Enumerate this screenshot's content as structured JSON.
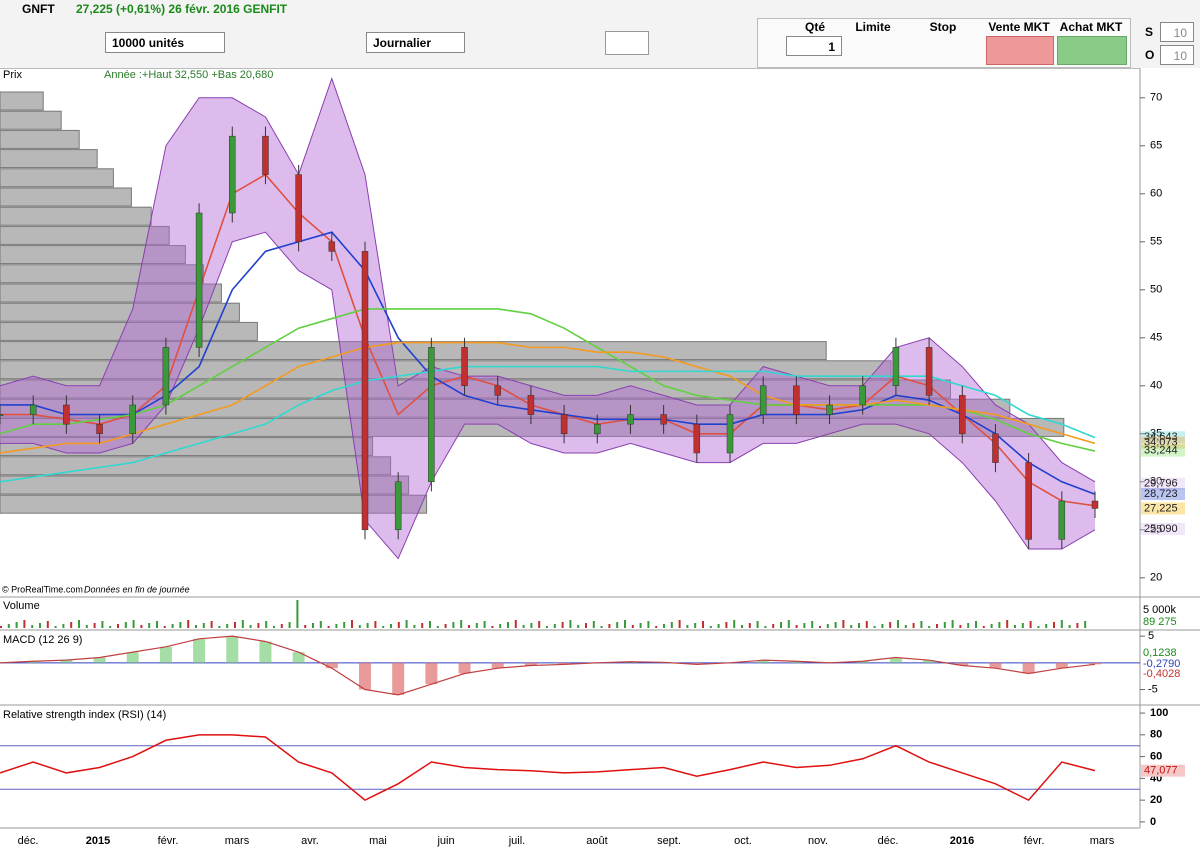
{
  "toolbar": {
    "symbol": "GNFT",
    "quote": "27,225 (+0,61%) 26 févr. 2016 GENFIT",
    "size": "10000 unités",
    "period": "Journalier",
    "qty_label": "Qté",
    "qty": "1",
    "limit": "Limite",
    "stop": "Stop",
    "sell": "Vente MKT",
    "buy": "Achat MKT",
    "s": "S",
    "s_val": "10",
    "o": "O",
    "o_val": "10"
  },
  "price": {
    "label": "Prix",
    "info": "Année :+Haut 32,550 +Bas 20,680",
    "credit": "© ProRealTime.com",
    "credit_note": "Données en fin de journée",
    "ylim": [
      18,
      73.1
    ],
    "yticks": [
      20,
      25,
      30,
      35,
      40,
      45,
      50,
      55,
      60,
      65,
      70
    ],
    "badges": [
      {
        "value": 34.643,
        "label": "34,643",
        "color": "#5fd6d6"
      },
      {
        "value": 34.073,
        "label": "34,073",
        "color": "#f5a030"
      },
      {
        "value": 33.244,
        "label": "33,244",
        "color": "#7fe060"
      },
      {
        "value": 29.796,
        "label": "29,796",
        "color": "#d9b8ee"
      },
      {
        "value": 28.723,
        "label": "28,723",
        "color": "#3a5ad8"
      },
      {
        "value": 27.225,
        "label": "27,225",
        "color": "#f5b800"
      },
      {
        "value": 25.09,
        "label": "25,090",
        "color": "#d9b8ee"
      }
    ],
    "series": [
      {
        "name": "Cours",
        "color": "#2e7d32",
        "values": [
          37,
          38,
          36,
          35,
          38,
          44,
          58,
          66,
          62,
          55,
          54,
          25,
          30,
          44,
          40,
          39,
          37,
          35,
          36,
          37,
          36,
          33,
          37,
          40,
          37,
          38,
          40,
          44,
          39,
          35,
          32,
          24,
          28,
          27.225
        ]
      },
      {
        "name": "Bollinger haut",
        "color": "#8a3fb0",
        "values": [
          40,
          41,
          40,
          40,
          48,
          65,
          70,
          70,
          68,
          62,
          72,
          62,
          40,
          42,
          41,
          41,
          40,
          39,
          39,
          40,
          39,
          38,
          38,
          42,
          41,
          40,
          40,
          44,
          45,
          42,
          38,
          36,
          32,
          30
        ]
      },
      {
        "name": "Bollinger bas",
        "color": "#8a3fb0",
        "values": [
          34,
          34,
          33,
          33,
          34,
          38,
          46,
          55,
          56,
          52,
          50,
          26,
          22,
          30,
          36,
          36,
          34,
          33,
          33,
          34,
          33,
          32,
          32,
          34,
          34,
          35,
          36,
          36,
          35,
          32,
          28,
          23,
          23,
          25
        ]
      },
      {
        "name": "MM20",
        "color": "#e05040",
        "values": [
          37,
          37,
          36.5,
          36,
          37,
          40,
          50,
          60,
          62,
          58,
          55,
          45,
          37,
          40,
          41,
          40,
          38,
          37,
          36,
          36.5,
          36.5,
          35,
          35,
          38,
          38,
          37.5,
          38,
          41,
          40,
          37,
          34,
          30,
          28,
          27.5
        ]
      },
      {
        "name": "MM50",
        "color": "#2040d0",
        "values": [
          38,
          38,
          37,
          37,
          37,
          39,
          42,
          50,
          54,
          55,
          56,
          52,
          45,
          41,
          39,
          38,
          37.5,
          37,
          36.5,
          36.5,
          36.5,
          36,
          36,
          37,
          37,
          37,
          37.5,
          39,
          38.5,
          37,
          35,
          32,
          30,
          28.7
        ]
      },
      {
        "name": "MM100",
        "color": "#60d040",
        "values": [
          35,
          36,
          36,
          36.5,
          37,
          38,
          40,
          42,
          44,
          46,
          47,
          48,
          48,
          48,
          48,
          48,
          47.5,
          46,
          44,
          42,
          40,
          39,
          38.5,
          38,
          38,
          38,
          38,
          38,
          38,
          37.5,
          36.5,
          35,
          34,
          33.2
        ]
      },
      {
        "name": "MM150",
        "color": "#f59a20",
        "values": [
          33,
          33.5,
          34,
          34,
          35,
          36,
          37,
          38,
          40,
          42,
          43,
          44,
          44.5,
          44.5,
          44.5,
          44.5,
          44,
          44,
          43.5,
          43.5,
          43,
          42,
          41,
          39,
          38,
          38,
          38,
          38.5,
          38,
          37.5,
          37,
          36,
          35,
          34
        ]
      },
      {
        "name": "MM200",
        "color": "#30d8d0",
        "values": [
          30,
          30.5,
          31,
          31.5,
          32,
          33,
          34,
          35,
          36,
          38,
          39.5,
          40.5,
          41,
          41.5,
          42,
          42,
          42,
          42,
          42,
          41.5,
          41.5,
          41.5,
          41.5,
          41.5,
          41,
          41,
          41,
          41,
          41,
          40,
          39,
          37,
          36,
          34.6
        ]
      }
    ]
  },
  "volume": {
    "label": "Volume",
    "ticks": [
      {
        "value": 5000000,
        "label": "5 000k"
      }
    ],
    "last": {
      "value": 89275,
      "label": "89 275"
    }
  },
  "macd": {
    "label": "MACD (12 26 9)",
    "ylim": [
      -7.9,
      6.15
    ],
    "yticks": [
      5,
      -5
    ],
    "badges": [
      {
        "value": 0.1238,
        "label": "0,1238"
      },
      {
        "value": -0.279,
        "label": "-0,2790"
      },
      {
        "value": -0.4028,
        "label": "-0,4028"
      }
    ],
    "values": [
      0,
      0.3,
      0.5,
      1,
      2,
      3,
      4.5,
      5,
      4,
      2,
      -1,
      -5,
      -6,
      -4,
      -2,
      -1,
      -0.5,
      -0.3,
      0,
      0.2,
      0.1,
      -0.3,
      0,
      0.5,
      0.3,
      0,
      0.3,
      1,
      0.5,
      -0.5,
      -1,
      -2,
      -1,
      -0.279
    ]
  },
  "rsi": {
    "label": "Relative strength index (RSI) (14)",
    "ylim": [
      -5.6,
      107.4
    ],
    "yticks": [
      0,
      20,
      40,
      60,
      80,
      100
    ],
    "levels": [
      30,
      70
    ],
    "last": {
      "value": 47.077,
      "label": "47,077"
    },
    "values": [
      45,
      55,
      45,
      50,
      60,
      75,
      80,
      80,
      78,
      55,
      45,
      20,
      35,
      55,
      50,
      48,
      47,
      45,
      46,
      48,
      50,
      42,
      48,
      55,
      50,
      52,
      58,
      70,
      55,
      45,
      35,
      20,
      55,
      47.077
    ]
  },
  "xaxis": {
    "categories": [
      "déc.",
      "2015",
      "févr.",
      "mars",
      "avr.",
      "mai",
      "juin",
      "juil.",
      "août",
      "sept.",
      "oct.",
      "nov.",
      "déc.",
      "2016",
      "févr.",
      "mars"
    ]
  }
}
